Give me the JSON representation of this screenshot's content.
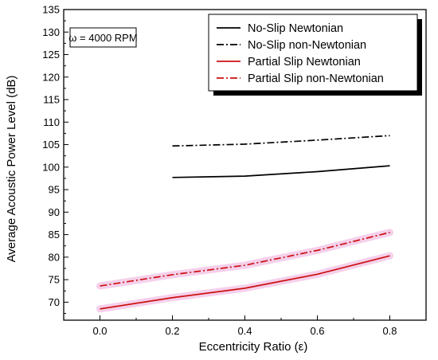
{
  "chart_data": {
    "type": "line",
    "title": "",
    "xlabel": "Eccentricity Ratio (ε)",
    "ylabel": "Average Acoustic Power Level (dB)",
    "xlim": [
      -0.1,
      0.9
    ],
    "ylim": [
      66,
      135
    ],
    "x_ticks": [
      "0.0",
      "0.2",
      "0.4",
      "0.6",
      "0.8"
    ],
    "y_ticks": [
      "70",
      "75",
      "80",
      "85",
      "90",
      "95",
      "100",
      "105",
      "110",
      "115",
      "120",
      "125",
      "130",
      "135"
    ],
    "annotation": "ω = 4000 RPM",
    "legend_position": "top-right",
    "grid": false,
    "series": [
      {
        "name": "No-Slip Newtonian",
        "color": "#000000",
        "dash": "solid",
        "x": [
          0.2,
          0.4,
          0.6,
          0.8
        ],
        "values": [
          97.7,
          98.0,
          99.0,
          100.3
        ]
      },
      {
        "name": "No-Slip non-Newtonian",
        "color": "#000000",
        "dash": "dashdot",
        "x": [
          0.2,
          0.4,
          0.6,
          0.8
        ],
        "values": [
          104.7,
          105.1,
          106.0,
          107.0
        ]
      },
      {
        "name": "Partial Slip Newtonian",
        "color": "#cc1111",
        "dash": "solid",
        "x": [
          0.0,
          0.2,
          0.4,
          0.6,
          0.8
        ],
        "values": [
          68.5,
          71.0,
          73.1,
          76.2,
          80.3
        ]
      },
      {
        "name": "Partial Slip non-Newtonian",
        "color": "#cc1111",
        "dash": "dashdot",
        "x": [
          0.0,
          0.2,
          0.4,
          0.6,
          0.8
        ],
        "values": [
          73.6,
          76.1,
          78.2,
          81.5,
          85.5
        ]
      }
    ]
  }
}
